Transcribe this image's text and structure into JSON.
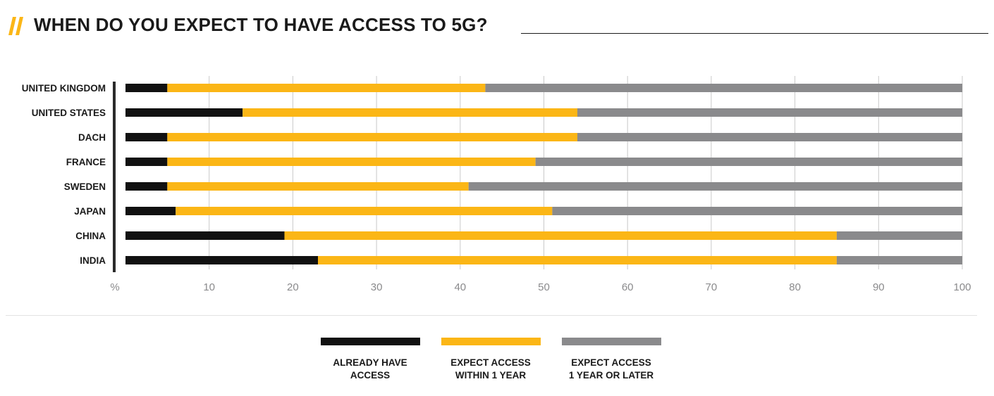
{
  "header": {
    "title": "WHEN DO YOU EXPECT TO HAVE ACCESS TO 5G?",
    "accent_color": "#fbb616"
  },
  "chart_data": {
    "type": "bar",
    "orientation": "horizontal",
    "stacked": true,
    "categories": [
      "UNITED KINGDOM",
      "UNITED STATES",
      "DACH",
      "FRANCE",
      "SWEDEN",
      "JAPAN",
      "CHINA",
      "INDIA"
    ],
    "series": [
      {
        "name": "ALREADY HAVE ACCESS",
        "legend_lines": [
          "ALREADY HAVE",
          "ACCESS"
        ],
        "color": "#111111",
        "values": [
          5,
          14,
          5,
          5,
          5,
          6,
          19,
          23
        ]
      },
      {
        "name": "EXPECT ACCESS WITHIN 1 YEAR",
        "legend_lines": [
          "EXPECT ACCESS",
          "WITHIN 1 YEAR"
        ],
        "color": "#fbb616",
        "values": [
          38,
          40,
          49,
          44,
          36,
          45,
          66,
          62
        ]
      },
      {
        "name": "EXPECT ACCESS 1 YEAR OR LATER",
        "legend_lines": [
          "EXPECT ACCESS",
          "1 YEAR OR LATER"
        ],
        "color": "#8a8a8c",
        "values": [
          57,
          46,
          46,
          51,
          59,
          49,
          15,
          15
        ]
      }
    ],
    "x_axis_unit_label": "%",
    "xticks": [
      10,
      20,
      30,
      40,
      50,
      60,
      70,
      80,
      90,
      100
    ],
    "xlim": [
      0,
      100
    ],
    "grid": true,
    "legend_position": "bottom"
  }
}
